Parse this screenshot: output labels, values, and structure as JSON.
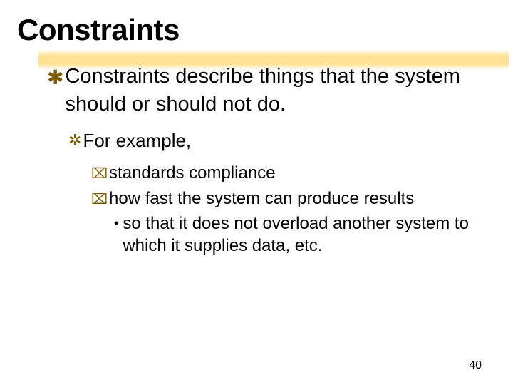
{
  "title": "Constraints",
  "bullets": {
    "l1": "Constraints describe things that the system should or should not do.",
    "l2": "For example,",
    "l3a": "standards compliance",
    "l3b": "how fast the system can produce results",
    "l4": "so that it does not overload another system to which it supplies data, etc."
  },
  "page_number": "40",
  "glyphs": {
    "z": "✱",
    "y": "✲",
    "x": "⌧",
    "dot": "•"
  },
  "style": {
    "title_fontsize": 42,
    "l1_fontsize": 29,
    "l2_fontsize": 26,
    "l3_fontsize": 24,
    "l4_fontsize": 24,
    "bullet_color": "#7a5c00",
    "highlight_color": "#ffc83c",
    "text_color": "#000000",
    "background": "#ffffff",
    "font_family": "Verdana"
  }
}
